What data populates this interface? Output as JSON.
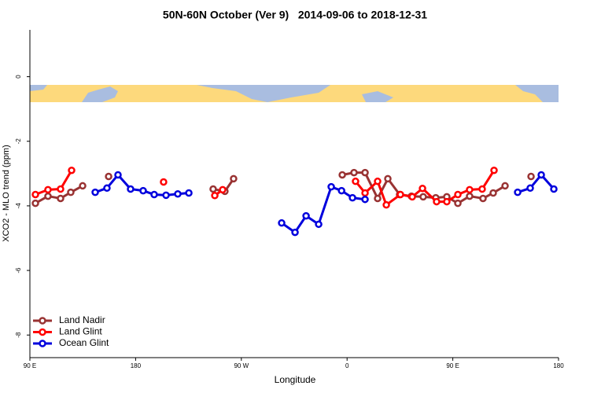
{
  "chart_data": {
    "type": "line",
    "title": "50N-60N October (Ver 9)   2014-09-06 to 2018-12-31",
    "x_label": "Longitude",
    "y_label": "XCO2 - MLO trend (ppm)",
    "xlim": [
      90,
      540
    ],
    "xticks": [
      {
        "value": 90,
        "label": "90 E"
      },
      {
        "value": 180,
        "label": "180"
      },
      {
        "value": 270,
        "label": "90 W"
      },
      {
        "value": 360,
        "label": "0"
      },
      {
        "value": 450,
        "label": "90 E"
      },
      {
        "value": 540,
        "label": "180"
      }
    ],
    "ylim": [
      -8.7,
      1.45
    ],
    "yticks": [
      0,
      -2,
      -4,
      -6,
      -8
    ],
    "legend": "bottom-left",
    "series": [
      {
        "name": "Land Nadir",
        "color": "#993333",
        "x": [
          94.7,
          105.4,
          116.1,
          124.8,
          134.9,
          null,
          157,
          null,
          246,
          256,
          263.4,
          null,
          355.9,
          365.9,
          375.3,
          386,
          394.7,
          404.7,
          414.8,
          424.8,
          435.5,
          444.9,
          454.3,
          464.3,
          475.7,
          484.4,
          494.5,
          null,
          516.6
        ],
        "values": [
          -3.92,
          -3.7,
          -3.77,
          -3.58,
          -3.38,
          null,
          -3.09,
          null,
          -3.48,
          -3.55,
          -3.16,
          null,
          -3.04,
          -2.97,
          -2.97,
          -3.77,
          -3.16,
          -3.65,
          -3.7,
          -3.72,
          -3.75,
          -3.72,
          -3.92,
          -3.7,
          -3.77,
          -3.6,
          -3.38,
          null,
          -3.09
        ]
      },
      {
        "name": "Land Glint",
        "color": "#ff0000",
        "x": [
          94.7,
          105.4,
          116.1,
          125.5,
          null,
          203.8,
          null,
          247.4,
          254.1,
          null,
          367.2,
          375.3,
          386,
          393.4,
          405.4,
          415.5,
          424.2,
          436.2,
          444.9,
          454.3,
          464.3,
          475,
          485.1
        ],
        "values": [
          -3.65,
          -3.5,
          -3.48,
          -2.9,
          null,
          -3.26,
          null,
          -3.68,
          -3.5,
          null,
          -3.24,
          -3.6,
          -3.24,
          -3.97,
          -3.65,
          -3.72,
          -3.46,
          -3.87,
          -3.87,
          -3.65,
          -3.5,
          -3.48,
          -2.9
        ]
      },
      {
        "name": "Ocean Glint",
        "color": "#0000dd",
        "x": [
          145.6,
          155.6,
          165,
          175.7,
          186.4,
          195.8,
          205.9,
          215.9,
          225.3,
          null,
          304.3,
          315.7,
          325.1,
          335.8,
          346.5,
          355.3,
          364.6,
          375.3,
          null,
          505.2,
          515.9,
          525.3,
          536
        ],
        "values": [
          -3.58,
          -3.45,
          -3.04,
          -3.48,
          -3.53,
          -3.65,
          -3.67,
          -3.63,
          -3.6,
          null,
          -4.53,
          -4.82,
          -4.31,
          -4.57,
          -3.41,
          -3.53,
          -3.75,
          -3.8,
          null,
          -3.58,
          -3.45,
          -3.04,
          -3.48
        ]
      }
    ]
  }
}
